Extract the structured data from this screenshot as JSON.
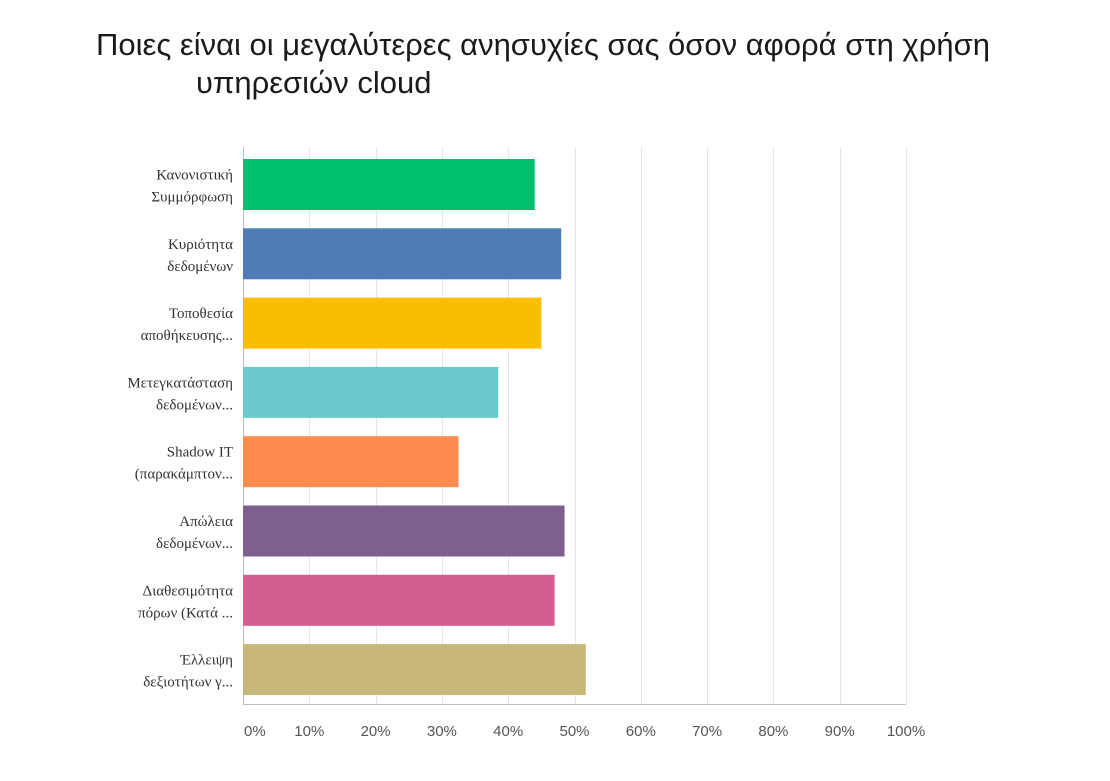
{
  "chart_data": {
    "type": "bar",
    "orientation": "horizontal",
    "title_lines": [
      "Ποιες είναι οι μεγαλύτερες ανησυχίες σας όσον αφορά στη χρήση",
      "υπηρεσιών cloud"
    ],
    "categories": [
      [
        "Κανονιστική",
        "Συμμόρφωση"
      ],
      [
        "Κυριότητα",
        "δεδομένων"
      ],
      [
        "Τοποθεσία",
        "αποθήκευσης..."
      ],
      [
        "Μετεγκατάσταση",
        "δεδομένων..."
      ],
      [
        "Shadow IT",
        "(παρακάμπτον..."
      ],
      [
        "Απώλεια",
        "δεδομένων..."
      ],
      [
        "Διαθεσιμότητα",
        "πόρων (Κατά ..."
      ],
      [
        "Έλλειψη",
        "δεξιοτήτων γ..."
      ]
    ],
    "values": [
      44,
      48,
      45,
      38.5,
      32.5,
      48.5,
      47,
      51.7
    ],
    "colors": [
      "#00bf6f",
      "#507cb6",
      "#f9be00",
      "#6bc8cd",
      "#ff8b4f",
      "#7f5f90",
      "#d25f90",
      "#c7b879"
    ],
    "xlim": [
      0,
      100
    ],
    "xticks": [
      "0%",
      "10%",
      "20%",
      "30%",
      "40%",
      "50%",
      "60%",
      "70%",
      "80%",
      "90%",
      "100%"
    ],
    "grid": true,
    "legend": "none"
  }
}
